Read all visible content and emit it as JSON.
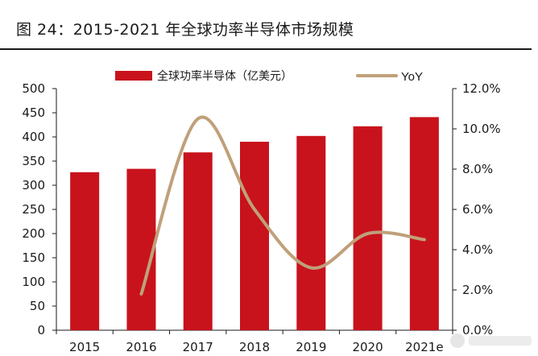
{
  "figure": {
    "title": "图 24：2015-2021 年全球功率半导体市场规模"
  },
  "chart_data": {
    "type": "bar",
    "title": "",
    "categories": [
      "2015",
      "2016",
      "2017",
      "2018",
      "2019",
      "2020",
      "2021e"
    ],
    "series": [
      {
        "name": "全球功率半导体（亿美元）",
        "type": "bar",
        "axis": "left",
        "color": "#c8131c",
        "values": [
          327,
          334,
          368,
          390,
          402,
          422,
          441
        ]
      },
      {
        "name": "YoY",
        "type": "line",
        "axis": "right",
        "color": "#c0a07a",
        "values": [
          null,
          1.8,
          10.5,
          6.0,
          3.1,
          4.8,
          4.5
        ]
      }
    ],
    "y_left": {
      "min": 0,
      "max": 500,
      "step": 50,
      "ticks": [
        "0",
        "50",
        "100",
        "150",
        "200",
        "250",
        "300",
        "350",
        "400",
        "450",
        "500"
      ]
    },
    "y_right": {
      "min": 0,
      "max": 12,
      "step": 2,
      "ticks": [
        "0.0%",
        "2.0%",
        "4.0%",
        "6.0%",
        "8.0%",
        "10.0%",
        "12.0%"
      ]
    },
    "legend_position": "top",
    "grid": false
  }
}
